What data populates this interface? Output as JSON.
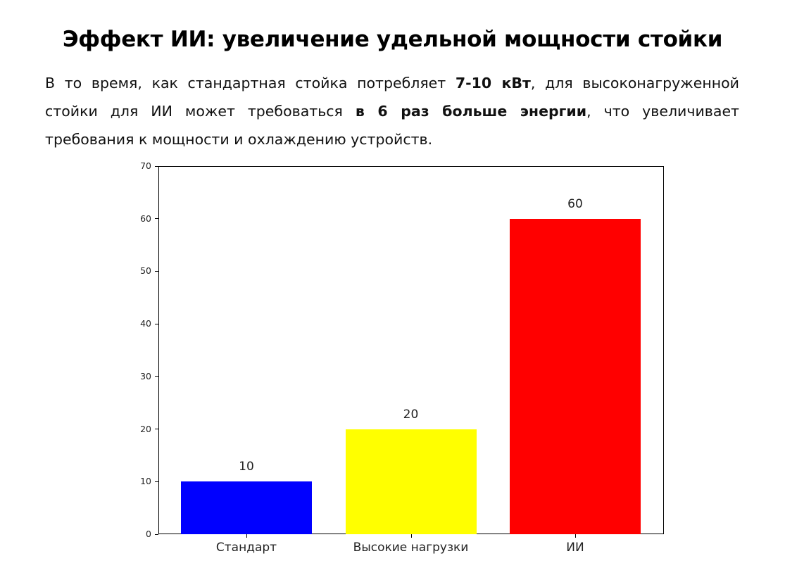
{
  "header": {
    "title": "Эффект ИИ: увеличение удельной мощности стойки"
  },
  "description": {
    "part1": "В то время, как стандартная стойка потребляет ",
    "bold1": "7-10 кВт",
    "part2": ", для высоконагруженной стойки для ИИ может требоваться ",
    "bold2": "в 6 раз больше энергии",
    "part3": ", что увеличивает требования к мощности и охлаждению устройств."
  },
  "chart_data": {
    "type": "bar",
    "title": "",
    "xlabel": "",
    "ylabel": "",
    "categories": [
      "Стандарт",
      "Высокие нагрузки",
      "ИИ"
    ],
    "values": [
      10,
      20,
      60
    ],
    "value_labels": [
      "10",
      "20",
      "60"
    ],
    "colors": [
      "#0000ff",
      "#ffff00",
      "#ff0000"
    ],
    "ylim": [
      0,
      70
    ],
    "yticks": [
      0,
      10,
      20,
      30,
      40,
      50,
      60,
      70
    ],
    "ytick_labels": [
      "0",
      "10",
      "20",
      "30",
      "40",
      "50",
      "60",
      "70"
    ],
    "grid": false,
    "legend": null
  }
}
